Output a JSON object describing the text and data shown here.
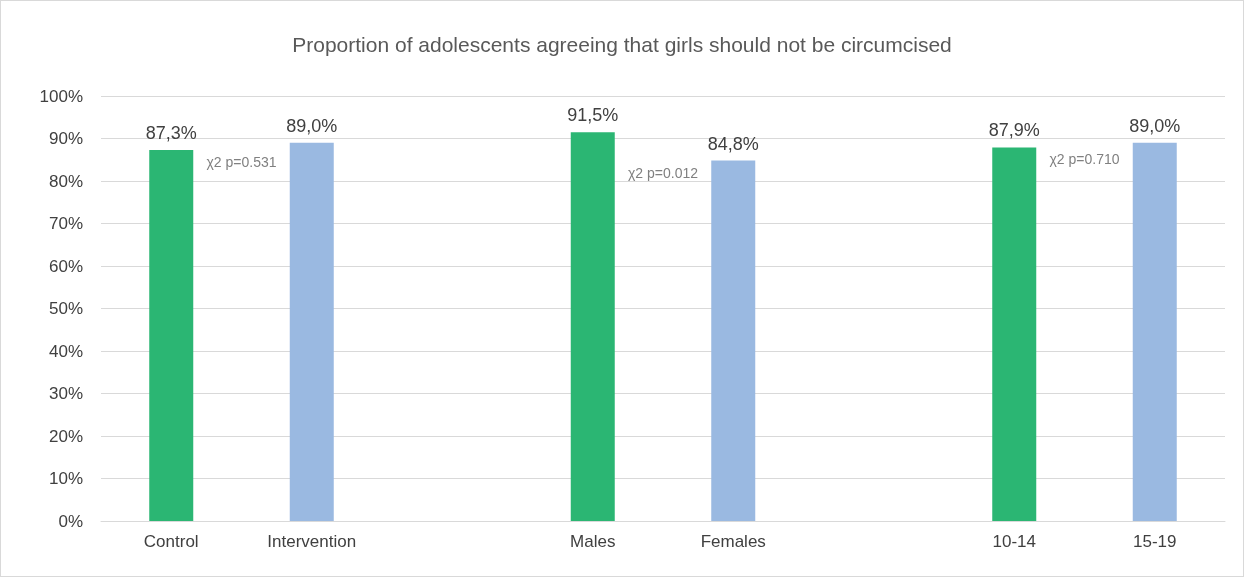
{
  "chart_data": {
    "type": "bar",
    "title": "Proportion of adolescents agreeing that girls should not be circumcised",
    "categories": [
      "Control",
      "Intervention",
      null,
      "Males",
      "Females",
      null,
      "10-14",
      "15-19"
    ],
    "values": [
      87.3,
      89.0,
      null,
      91.5,
      84.8,
      null,
      87.9,
      89.0
    ],
    "colors": [
      "#2bb673",
      "#9ab9e1",
      null,
      "#2bb673",
      "#9ab9e1",
      null,
      "#2bb673",
      "#9ab9e1"
    ],
    "value_labels": [
      "87,3%",
      "89,0%",
      null,
      "91,5%",
      "84,8%",
      null,
      "87,9%",
      "89,0%"
    ],
    "ylim": [
      0,
      100
    ],
    "yticks": [
      {
        "value": 0,
        "label": "0%"
      },
      {
        "value": 10,
        "label": "10%"
      },
      {
        "value": 20,
        "label": "20%"
      },
      {
        "value": 30,
        "label": "30%"
      },
      {
        "value": 40,
        "label": "40%"
      },
      {
        "value": 50,
        "label": "50%"
      },
      {
        "value": 60,
        "label": "60%"
      },
      {
        "value": 70,
        "label": "70%"
      },
      {
        "value": 80,
        "label": "80%"
      },
      {
        "value": 90,
        "label": "90%"
      },
      {
        "value": 100,
        "label": "100%"
      }
    ],
    "annotations": [
      "χ2 p=0.531",
      "χ2 p=0.012",
      "χ2 p=0.710"
    ],
    "grid": "y"
  }
}
